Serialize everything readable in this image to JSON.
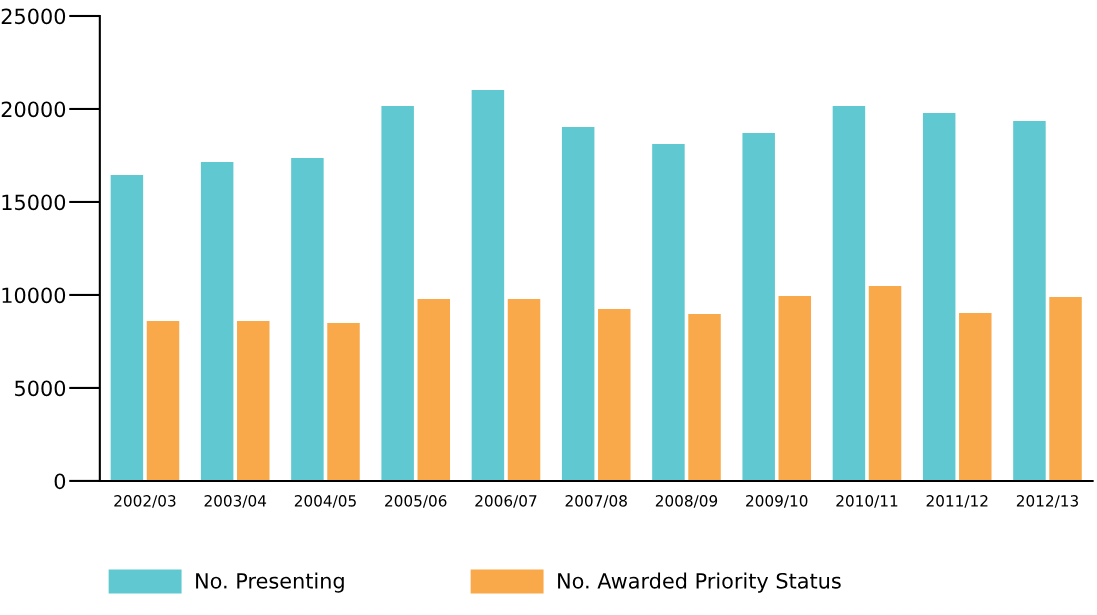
{
  "chart_data": {
    "type": "bar",
    "categories": [
      "2002/03",
      "2003/04",
      "2004/05",
      "2005/06",
      "2006/07",
      "2007/08",
      "2008/09",
      "2009/10",
      "2010/11",
      "2011/12",
      "2012/13"
    ],
    "series": [
      {
        "name": "No. Presenting",
        "color": "#5fc8d0",
        "values": [
          16450,
          17150,
          17370,
          20160,
          21020,
          19030,
          18120,
          18710,
          20160,
          19780,
          19350
        ]
      },
      {
        "name": "No. Awarded Priority Status",
        "color": "#f9a94a",
        "values": [
          8600,
          8600,
          8490,
          9780,
          9780,
          9250,
          8980,
          9950,
          10480,
          9030,
          9890
        ]
      }
    ],
    "ylim": [
      0,
      25000
    ],
    "yticks": [
      0,
      5000,
      10000,
      15000,
      20000,
      25000
    ],
    "grid": false,
    "legend": "bottom"
  }
}
